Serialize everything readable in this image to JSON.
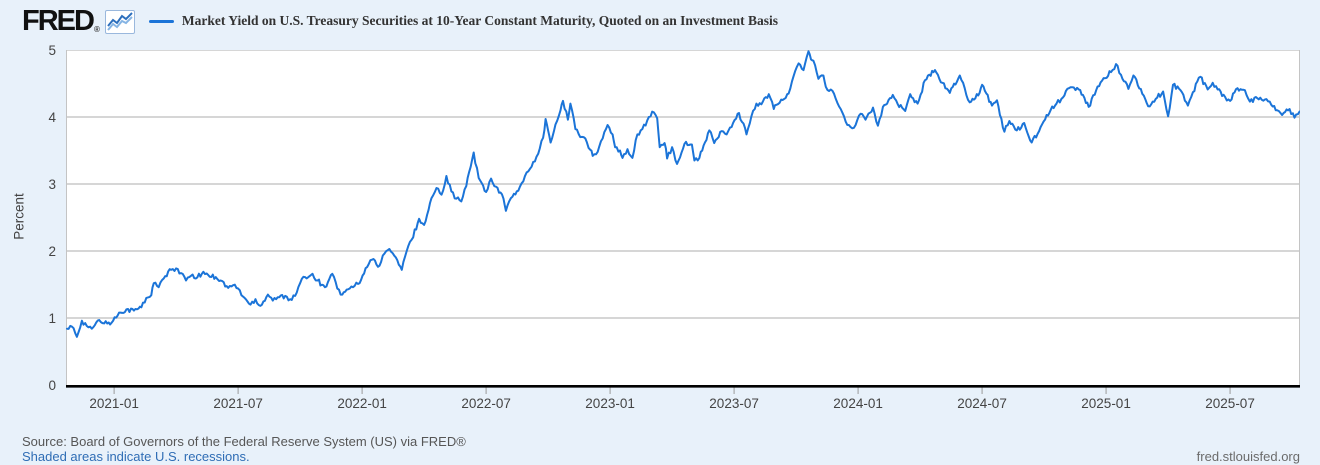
{
  "header": {
    "logo_text": "FRED",
    "registered_mark": "®",
    "series_title": "Market Yield on U.S. Treasury Securities at 10-Year Constant Maturity, Quoted on an Investment Basis"
  },
  "footer": {
    "source_text": "Source: Board of Governors of the Federal Reserve System (US) via FRED®",
    "recession_note": "Shaded areas indicate U.S. recessions.",
    "site_link": "fred.stlouisfed.org"
  },
  "colors": {
    "background": "#e8f1fa",
    "plot_background": "#ffffff",
    "line": "#1b74d8",
    "grid": "#bdbdbd",
    "plot_border": "#c4c4c4",
    "axis": "#000000",
    "tick_text": "#444444",
    "link": "#2f6db5",
    "icon_dark": "#2c6fbd",
    "icon_light": "#85b4e4"
  },
  "chart_data": {
    "type": "line",
    "title": "Market Yield on U.S. Treasury Securities at 10-Year Constant Maturity, Quoted on an Investment Basis",
    "xlabel": "",
    "ylabel": "Percent",
    "ylim": [
      0,
      5
    ],
    "y_ticks": [
      0,
      1,
      2,
      3,
      4,
      5
    ],
    "x_tick_labels": [
      "2021-01",
      "2021-07",
      "2022-01",
      "2022-07",
      "2023-01",
      "2023-07",
      "2024-01",
      "2024-07",
      "2025-01",
      "2025-07"
    ],
    "x_domain_decimal_years": [
      2020.806,
      2025.782
    ],
    "grid": true,
    "legend_position": "top",
    "jitter": 0.035,
    "series": [
      {
        "name": "Market Yield on U.S. Treasury Securities at 10-Year Constant Maturity, Quoted on an Investment Basis",
        "units": "Percent",
        "points": [
          [
            2020.81,
            0.84
          ],
          [
            2020.83,
            0.87
          ],
          [
            2020.85,
            0.72
          ],
          [
            2020.87,
            0.96
          ],
          [
            2020.89,
            0.88
          ],
          [
            2020.91,
            0.84
          ],
          [
            2020.94,
            0.97
          ],
          [
            2020.96,
            0.92
          ],
          [
            2020.99,
            0.93
          ],
          [
            2021.02,
            1.08
          ],
          [
            2021.05,
            1.13
          ],
          [
            2021.08,
            1.11
          ],
          [
            2021.11,
            1.16
          ],
          [
            2021.13,
            1.3
          ],
          [
            2021.15,
            1.34
          ],
          [
            2021.16,
            1.52
          ],
          [
            2021.18,
            1.46
          ],
          [
            2021.2,
            1.59
          ],
          [
            2021.23,
            1.72
          ],
          [
            2021.25,
            1.74
          ],
          [
            2021.27,
            1.67
          ],
          [
            2021.29,
            1.56
          ],
          [
            2021.31,
            1.63
          ],
          [
            2021.33,
            1.59
          ],
          [
            2021.36,
            1.69
          ],
          [
            2021.38,
            1.64
          ],
          [
            2021.41,
            1.61
          ],
          [
            2021.43,
            1.56
          ],
          [
            2021.46,
            1.45
          ],
          [
            2021.48,
            1.49
          ],
          [
            2021.5,
            1.44
          ],
          [
            2021.52,
            1.32
          ],
          [
            2021.55,
            1.2
          ],
          [
            2021.57,
            1.28
          ],
          [
            2021.59,
            1.18
          ],
          [
            2021.62,
            1.35
          ],
          [
            2021.64,
            1.26
          ],
          [
            2021.66,
            1.31
          ],
          [
            2021.69,
            1.33
          ],
          [
            2021.71,
            1.28
          ],
          [
            2021.73,
            1.33
          ],
          [
            2021.75,
            1.52
          ],
          [
            2021.77,
            1.61
          ],
          [
            2021.8,
            1.66
          ],
          [
            2021.82,
            1.56
          ],
          [
            2021.85,
            1.46
          ],
          [
            2021.88,
            1.66
          ],
          [
            2021.9,
            1.44
          ],
          [
            2021.92,
            1.35
          ],
          [
            2021.95,
            1.44
          ],
          [
            2021.97,
            1.48
          ],
          [
            2021.99,
            1.52
          ],
          [
            2022.02,
            1.76
          ],
          [
            2022.04,
            1.87
          ],
          [
            2022.07,
            1.78
          ],
          [
            2022.09,
            1.96
          ],
          [
            2022.11,
            2.03
          ],
          [
            2022.13,
            1.93
          ],
          [
            2022.16,
            1.72
          ],
          [
            2022.18,
            2.0
          ],
          [
            2022.2,
            2.17
          ],
          [
            2022.23,
            2.48
          ],
          [
            2022.25,
            2.39
          ],
          [
            2022.28,
            2.79
          ],
          [
            2022.3,
            2.94
          ],
          [
            2022.32,
            2.84
          ],
          [
            2022.34,
            3.12
          ],
          [
            2022.36,
            2.89
          ],
          [
            2022.38,
            2.78
          ],
          [
            2022.4,
            2.74
          ],
          [
            2022.42,
            2.97
          ],
          [
            2022.45,
            3.47
          ],
          [
            2022.47,
            3.09
          ],
          [
            2022.5,
            2.88
          ],
          [
            2022.52,
            3.08
          ],
          [
            2022.54,
            2.96
          ],
          [
            2022.57,
            2.78
          ],
          [
            2022.58,
            2.6
          ],
          [
            2022.6,
            2.79
          ],
          [
            2022.63,
            2.9
          ],
          [
            2022.65,
            3.04
          ],
          [
            2022.67,
            3.19
          ],
          [
            2022.69,
            3.33
          ],
          [
            2022.71,
            3.45
          ],
          [
            2022.73,
            3.69
          ],
          [
            2022.74,
            3.97
          ],
          [
            2022.75,
            3.8
          ],
          [
            2022.76,
            3.62
          ],
          [
            2022.78,
            3.89
          ],
          [
            2022.8,
            4.1
          ],
          [
            2022.81,
            4.24
          ],
          [
            2022.83,
            3.96
          ],
          [
            2022.84,
            4.2
          ],
          [
            2022.86,
            3.82
          ],
          [
            2022.88,
            3.7
          ],
          [
            2022.9,
            3.68
          ],
          [
            2022.92,
            3.51
          ],
          [
            2022.93,
            3.42
          ],
          [
            2022.95,
            3.48
          ],
          [
            2022.97,
            3.68
          ],
          [
            2022.99,
            3.88
          ],
          [
            2023.01,
            3.74
          ],
          [
            2023.02,
            3.55
          ],
          [
            2023.04,
            3.5
          ],
          [
            2023.05,
            3.39
          ],
          [
            2023.07,
            3.52
          ],
          [
            2023.09,
            3.39
          ],
          [
            2023.11,
            3.74
          ],
          [
            2023.13,
            3.82
          ],
          [
            2023.15,
            3.95
          ],
          [
            2023.17,
            4.08
          ],
          [
            2023.19,
            3.98
          ],
          [
            2023.2,
            3.55
          ],
          [
            2023.22,
            3.61
          ],
          [
            2023.23,
            3.38
          ],
          [
            2023.25,
            3.55
          ],
          [
            2023.27,
            3.3
          ],
          [
            2023.3,
            3.6
          ],
          [
            2023.33,
            3.59
          ],
          [
            2023.34,
            3.35
          ],
          [
            2023.36,
            3.39
          ],
          [
            2023.4,
            3.8
          ],
          [
            2023.42,
            3.61
          ],
          [
            2023.45,
            3.79
          ],
          [
            2023.47,
            3.74
          ],
          [
            2023.49,
            3.85
          ],
          [
            2023.52,
            4.06
          ],
          [
            2023.55,
            3.74
          ],
          [
            2023.57,
            4.01
          ],
          [
            2023.59,
            4.2
          ],
          [
            2023.61,
            4.19
          ],
          [
            2023.64,
            4.34
          ],
          [
            2023.66,
            4.12
          ],
          [
            2023.67,
            4.18
          ],
          [
            2023.69,
            4.26
          ],
          [
            2023.72,
            4.35
          ],
          [
            2023.74,
            4.61
          ],
          [
            2023.76,
            4.8
          ],
          [
            2023.78,
            4.7
          ],
          [
            2023.8,
            4.98
          ],
          [
            2023.81,
            4.86
          ],
          [
            2023.82,
            4.84
          ],
          [
            2023.84,
            4.57
          ],
          [
            2023.86,
            4.62
          ],
          [
            2023.87,
            4.45
          ],
          [
            2023.89,
            4.41
          ],
          [
            2023.91,
            4.27
          ],
          [
            2023.93,
            4.12
          ],
          [
            2023.95,
            3.93
          ],
          [
            2023.97,
            3.85
          ],
          [
            2023.99,
            3.88
          ],
          [
            2024.01,
            4.05
          ],
          [
            2024.03,
            3.96
          ],
          [
            2024.06,
            4.14
          ],
          [
            2024.08,
            3.87
          ],
          [
            2024.1,
            4.15
          ],
          [
            2024.14,
            4.33
          ],
          [
            2024.16,
            4.19
          ],
          [
            2024.19,
            4.09
          ],
          [
            2024.21,
            4.34
          ],
          [
            2024.24,
            4.2
          ],
          [
            2024.27,
            4.55
          ],
          [
            2024.31,
            4.7
          ],
          [
            2024.34,
            4.51
          ],
          [
            2024.37,
            4.36
          ],
          [
            2024.41,
            4.62
          ],
          [
            2024.43,
            4.43
          ],
          [
            2024.45,
            4.22
          ],
          [
            2024.49,
            4.36
          ],
          [
            2024.5,
            4.48
          ],
          [
            2024.54,
            4.17
          ],
          [
            2024.56,
            4.25
          ],
          [
            2024.59,
            3.78
          ],
          [
            2024.61,
            3.94
          ],
          [
            2024.64,
            3.8
          ],
          [
            2024.67,
            3.91
          ],
          [
            2024.7,
            3.62
          ],
          [
            2024.73,
            3.79
          ],
          [
            2024.76,
            4.03
          ],
          [
            2024.8,
            4.2
          ],
          [
            2024.82,
            4.27
          ],
          [
            2024.85,
            4.43
          ],
          [
            2024.87,
            4.44
          ],
          [
            2024.89,
            4.41
          ],
          [
            2024.93,
            4.15
          ],
          [
            2024.96,
            4.4
          ],
          [
            2024.99,
            4.58
          ],
          [
            2025.02,
            4.67
          ],
          [
            2025.04,
            4.79
          ],
          [
            2025.06,
            4.63
          ],
          [
            2025.09,
            4.42
          ],
          [
            2025.11,
            4.62
          ],
          [
            2025.14,
            4.42
          ],
          [
            2025.17,
            4.16
          ],
          [
            2025.2,
            4.27
          ],
          [
            2025.23,
            4.38
          ],
          [
            2025.25,
            4.01
          ],
          [
            2025.27,
            4.48
          ],
          [
            2025.3,
            4.4
          ],
          [
            2025.33,
            4.17
          ],
          [
            2025.35,
            4.37
          ],
          [
            2025.38,
            4.6
          ],
          [
            2025.41,
            4.41
          ],
          [
            2025.43,
            4.51
          ],
          [
            2025.45,
            4.41
          ],
          [
            2025.48,
            4.3
          ],
          [
            2025.5,
            4.24
          ],
          [
            2025.53,
            4.43
          ],
          [
            2025.56,
            4.4
          ],
          [
            2025.58,
            4.23
          ],
          [
            2025.61,
            4.28
          ],
          [
            2025.64,
            4.26
          ],
          [
            2025.66,
            4.23
          ],
          [
            2025.69,
            4.1
          ],
          [
            2025.71,
            4.03
          ],
          [
            2025.74,
            4.12
          ],
          [
            2025.76,
            3.99
          ],
          [
            2025.78,
            4.08
          ]
        ]
      }
    ]
  }
}
